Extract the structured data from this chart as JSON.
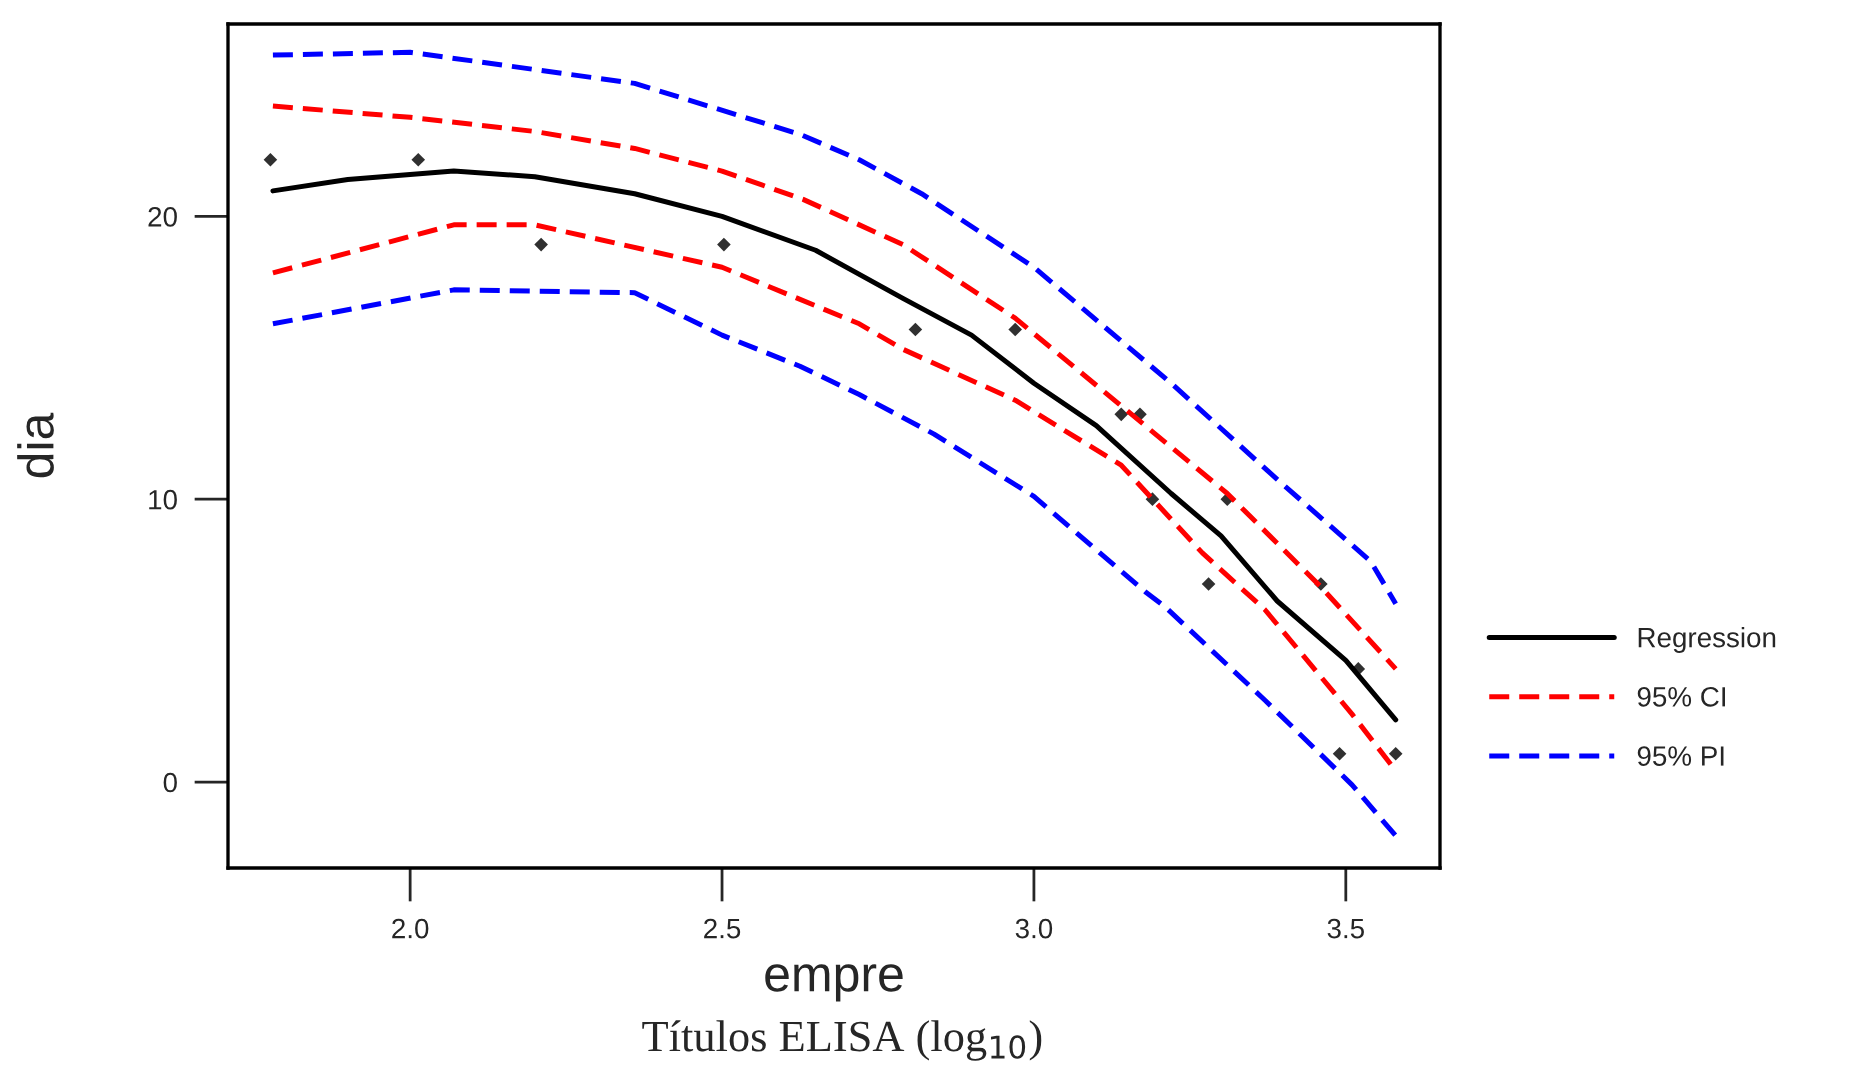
{
  "chart_data": {
    "type": "line",
    "xlabel": "empre",
    "ylabel": "dia",
    "annotations": [
      "Títulos ELISA (log$_{10}$)"
    ],
    "xlim": [
      1.708,
      3.651
    ],
    "ylim": [
      -3.04,
      26.8
    ],
    "xticks": [
      {
        "value": 2,
        "label": "2.0"
      },
      {
        "value": 2.5,
        "label": "2.5"
      },
      {
        "value": 3,
        "label": "3.0"
      },
      {
        "value": 3.5,
        "label": "3.5"
      }
    ],
    "yticks": [
      0,
      10,
      20
    ],
    "grid": false,
    "legend": "right",
    "series": [
      {
        "type": "scatter",
        "color": "#303030",
        "marker": "diamond",
        "x": [
          1.776,
          2.013,
          2.21,
          2.503,
          2.81,
          2.97,
          3.14,
          3.17,
          3.19,
          3.31,
          3.28,
          3.46,
          3.52,
          3.49,
          3.58
        ],
        "values": [
          22,
          22,
          19,
          19,
          16,
          16,
          13,
          13,
          10,
          10,
          7,
          7,
          4,
          1,
          1
        ]
      },
      {
        "name": "Regression",
        "color": "#000000",
        "line_style": "solid",
        "x": [
          1.78,
          1.9,
          2.07,
          2.2,
          2.36,
          2.5,
          2.65,
          2.79,
          2.9,
          3.0,
          3.1,
          3.22,
          3.3,
          3.39,
          3.5,
          3.58
        ],
        "values": [
          20.9,
          21.3,
          21.6,
          21.4,
          20.8,
          20.0,
          18.8,
          17.1,
          15.8,
          14.1,
          12.6,
          10.2,
          8.7,
          6.4,
          4.3,
          2.2
        ]
      },
      {
        "name": "95% CI",
        "color": "#ff0000",
        "line_style": "dashed",
        "x": [
          1.78,
          2.0,
          2.2,
          2.36,
          2.5,
          2.63,
          2.79,
          2.97,
          3.14,
          3.31,
          3.46,
          3.58
        ],
        "values": [
          23.9,
          23.5,
          23.0,
          22.4,
          21.6,
          20.6,
          19.0,
          16.4,
          13.3,
          10.2,
          6.9,
          4.0
        ]
      },
      {
        "color": "#ff0000",
        "line_style": "dashed",
        "x": [
          1.78,
          2.07,
          2.2,
          2.5,
          2.72,
          2.79,
          2.97,
          3.14,
          3.27,
          3.37,
          3.51,
          3.58
        ],
        "values": [
          18.0,
          19.7,
          19.7,
          18.2,
          16.2,
          15.3,
          13.5,
          11.2,
          8.1,
          6.1,
          2.4,
          0.4
        ]
      },
      {
        "name": "95% PI",
        "color": "#0000ff",
        "line_style": "dashed",
        "x": [
          1.78,
          2.0,
          2.36,
          2.625,
          2.72,
          2.82,
          3.0,
          3.22,
          3.39,
          3.54,
          3.58
        ],
        "values": [
          25.7,
          25.8,
          24.7,
          22.9,
          22.0,
          20.8,
          18.2,
          14.1,
          10.7,
          7.8,
          6.3
        ]
      },
      {
        "color": "#0000ff",
        "line_style": "dashed",
        "x": [
          1.78,
          2.07,
          2.36,
          2.5,
          2.625,
          2.72,
          2.84,
          3.0,
          3.18,
          3.21,
          3.37,
          3.51,
          3.58
        ],
        "values": [
          16.2,
          17.4,
          17.3,
          15.8,
          14.7,
          13.7,
          12.3,
          10.1,
          6.7,
          6.2,
          2.9,
          -0.1,
          -1.9
        ]
      }
    ]
  }
}
